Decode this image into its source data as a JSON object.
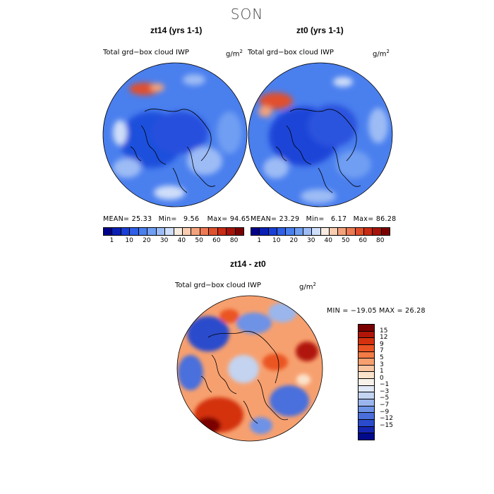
{
  "season": "SON",
  "panels": [
    {
      "id": "zt14",
      "title": "zt14 (yrs 1-1)",
      "variable": "Total grd−box cloud IWP",
      "units": "g/m",
      "units_exp": "2",
      "stats_mean_label": "MEAN=",
      "stats_mean": "25.33",
      "stats_min_label": "Min=",
      "stats_min": "9.56",
      "stats_max_label": "Max=",
      "stats_max": "94.65"
    },
    {
      "id": "zt0",
      "title": "zt0 (yrs 1-1)",
      "variable": "Total grd−box cloud IWP",
      "units": "g/m",
      "units_exp": "2",
      "stats_mean_label": "MEAN=",
      "stats_mean": "23.29",
      "stats_min_label": "Min=",
      "stats_min": "6.17",
      "stats_max_label": "Max=",
      "stats_max": "86.28"
    }
  ],
  "abs_colorbar": {
    "colors": [
      "#00008b",
      "#0a1fb4",
      "#1a3fd6",
      "#2f5fe6",
      "#4a7fee",
      "#6f9ef2",
      "#9dbcf5",
      "#cfdef9",
      "#f7ece0",
      "#f8cdb2",
      "#f3a27c",
      "#ec7a52",
      "#e0502d",
      "#c92b14",
      "#a5130a",
      "#7a0000"
    ],
    "tick_labels": [
      "1",
      "10",
      "20",
      "30",
      "40",
      "50",
      "60",
      "80"
    ]
  },
  "diff": {
    "title": "zt14 - zt0",
    "variable": "Total grd−box cloud IWP",
    "units": "g/m",
    "units_exp": "2",
    "minmax_text": "MIN = −19.05 MAX =  26.28",
    "colorbar_colors_top_to_bottom": [
      "#7a0000",
      "#b01608",
      "#d4310f",
      "#ea5424",
      "#f47b45",
      "#f7a06f",
      "#f9c4a0",
      "#fbe2cb",
      "#f7f1ea",
      "#e1e8f5",
      "#c3d3f0",
      "#9ab6ec",
      "#6e92e6",
      "#4a6fdc",
      "#2a4bcc",
      "#1526b0",
      "#020a8c"
    ],
    "colorbar_labels": [
      "15",
      "12",
      "9",
      "7",
      "5",
      "3",
      "1",
      "0",
      "−1",
      "−3",
      "−5",
      "−7",
      "−9",
      "−12",
      "−15"
    ]
  }
}
